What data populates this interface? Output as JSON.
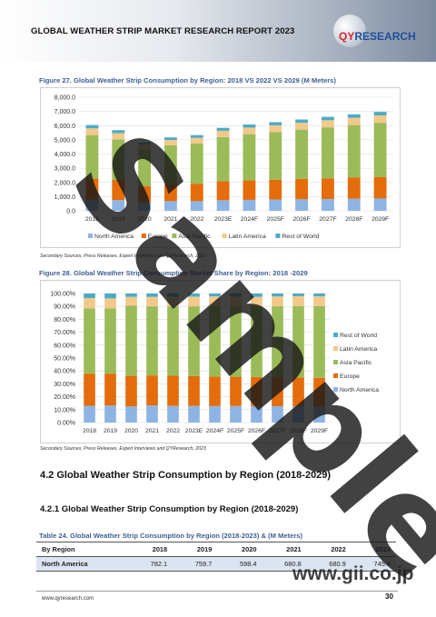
{
  "header": {
    "title": "GLOBAL WEATHER STRIP MARKET RESEARCH REPORT 2023",
    "logo_q": "QY",
    "logo_rest": "RESEARCH"
  },
  "figure27": {
    "title": "Figure 27.   Global Weather Strip Consumption by Region: 2018 VS 2022 VS 2029 (M Meters)",
    "source": "Secondary Sources, Press Releases, Expert Interviews and QYResearch, 2023"
  },
  "figure28": {
    "title": "Figure 28.   Global Weather Strip Consumption Market Share by Region: 2018 -2029",
    "source": "Secondary Sources, Press Releases, Expert Interviews and QYResearch, 2023"
  },
  "section": {
    "heading": "4.2   Global Weather Strip Consumption by Region (2018-2029)",
    "subheading": "4.2.1   Global Weather Strip Consumption by Region (2018-2029)"
  },
  "table": {
    "title": "Table 24.   Global Weather Strip Consumption by Region (2018-2023) & (M Meters)",
    "headers": [
      "By Region",
      "2018",
      "2019",
      "2020",
      "2021",
      "2022",
      "2023"
    ],
    "rows": [
      [
        "North America",
        "782.1",
        "759.7",
        "598.4",
        "680.8",
        "680.9",
        "745.4"
      ]
    ]
  },
  "footer": {
    "url": "www.qyresearch.com",
    "page": "30"
  },
  "watermark": {
    "sample": "Sample",
    "site": "www.gii.co.jp"
  },
  "colors": {
    "North America": "#8eb4e3",
    "Europe": "#e46c0a",
    "Asia Pacific": "#9bbb59",
    "Latin America": "#f2c98a",
    "Rest of World": "#4bacc6"
  },
  "chart_data": [
    {
      "type": "bar",
      "stacked": true,
      "categories": [
        "2018",
        "2019",
        "2020",
        "2021",
        "2022",
        "2023E",
        "2024F",
        "2025F",
        "2026F",
        "2027F",
        "2028F",
        "2029F"
      ],
      "ylim": [
        0,
        8000
      ],
      "yticks": [
        "0.0",
        "1,000.0",
        "2,000.0",
        "3,000.0",
        "4,000.0",
        "5,000.0",
        "6,000.0",
        "7,000.0",
        "8,000.0"
      ],
      "legend_position": "bottom",
      "series": [
        {
          "name": "North America",
          "values": [
            782,
            760,
            598,
            681,
            681,
            745,
            770,
            790,
            810,
            830,
            850,
            870
          ]
        },
        {
          "name": "Europe",
          "values": [
            1500,
            1420,
            1130,
            1190,
            1230,
            1340,
            1380,
            1400,
            1440,
            1460,
            1490,
            1520
          ]
        },
        {
          "name": "Asia Pacific",
          "values": [
            3050,
            2850,
            2600,
            2740,
            2830,
            3110,
            3250,
            3360,
            3470,
            3590,
            3700,
            3810
          ]
        },
        {
          "name": "Latin America",
          "values": [
            480,
            440,
            330,
            380,
            400,
            440,
            460,
            470,
            480,
            500,
            510,
            520
          ]
        },
        {
          "name": "Rest of World",
          "values": [
            230,
            210,
            160,
            180,
            190,
            210,
            220,
            225,
            230,
            240,
            245,
            250
          ]
        }
      ]
    },
    {
      "type": "bar",
      "stacked": true,
      "percent": true,
      "categories": [
        "2018",
        "2019",
        "2020",
        "2021",
        "2022",
        "2023E",
        "2024F",
        "2025F",
        "2026F",
        "2027F",
        "2028F",
        "2029F"
      ],
      "ylim": [
        0,
        100
      ],
      "yticks": [
        "0.00%",
        "10.00%",
        "20.00%",
        "30.00%",
        "40.00%",
        "50.00%",
        "60.00%",
        "70.00%",
        "80.00%",
        "90.00%",
        "100.00%"
      ],
      "legend_position": "right",
      "series": [
        {
          "name": "North America",
          "values": [
            13.0,
            13.2,
            12.5,
            13.3,
            12.9,
            12.9,
            12.8,
            12.8,
            12.7,
            12.7,
            12.7,
            12.6
          ]
        },
        {
          "name": "Europe",
          "values": [
            24.9,
            24.7,
            23.7,
            23.2,
            23.4,
            23.2,
            22.9,
            22.7,
            22.6,
            22.4,
            22.3,
            22.0
          ]
        },
        {
          "name": "Asia Pacific",
          "values": [
            50.6,
            50.5,
            54.3,
            53.5,
            53.7,
            53.9,
            54.3,
            54.5,
            54.6,
            55.0,
            55.3,
            55.6
          ]
        },
        {
          "name": "Latin America",
          "values": [
            8.0,
            7.8,
            6.9,
            7.4,
            7.6,
            7.6,
            7.7,
            7.6,
            7.5,
            7.6,
            7.6,
            7.6
          ]
        },
        {
          "name": "Rest of World",
          "values": [
            3.5,
            3.8,
            2.6,
            2.6,
            2.4,
            2.4,
            2.3,
            2.4,
            2.6,
            2.3,
            2.1,
            2.2
          ]
        }
      ]
    }
  ]
}
